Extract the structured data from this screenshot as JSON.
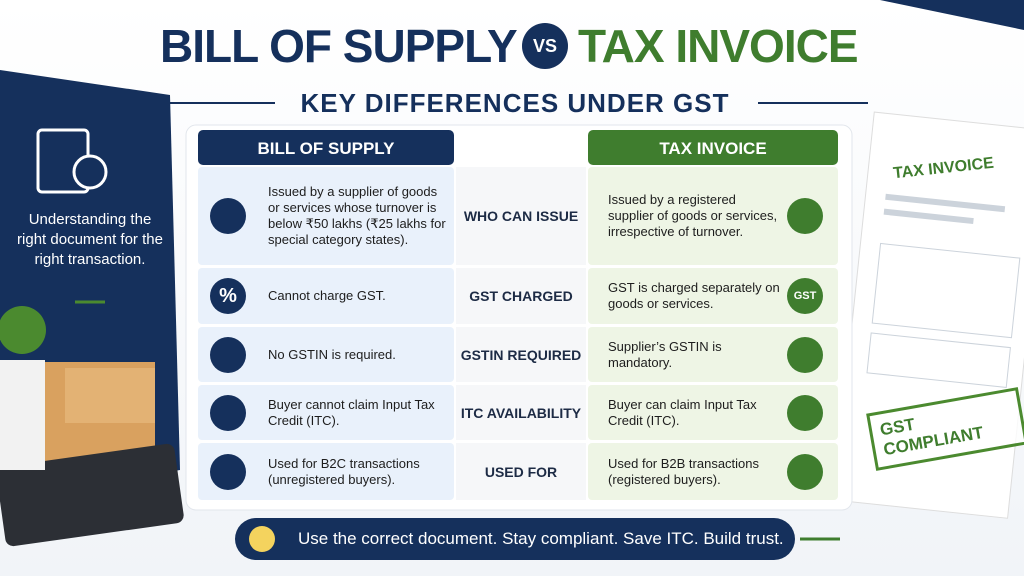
{
  "title": {
    "left": "BILL OF SUPPLY",
    "vs": "VS",
    "right": "TAX INVOICE"
  },
  "subtitle": "KEY DIFFERENCES UNDER GST",
  "sidebar": "Understanding the right document for the right transaction.",
  "table": {
    "headers": {
      "bill": "BILL OF SUPPLY",
      "tax": "TAX INVOICE"
    },
    "rows": [
      {
        "bill": "Issued by a supplier of goods or services whose turnover is below ₹50 lakhs (₹25 lakhs for special category states).",
        "criterion": "WHO CAN ISSUE",
        "tax": "Issued by a registered supplier of goods or services, irrespective of turnover."
      },
      {
        "bill": "Cannot charge GST.",
        "bill_icon": "%",
        "criterion": "GST CHARGED",
        "tax": "GST is charged separately on goods or services.",
        "tax_icon": "GST"
      },
      {
        "bill": "No GSTIN is required.",
        "criterion": "GSTIN REQUIRED",
        "tax": "Supplier’s GSTIN is mandatory."
      },
      {
        "bill": "Buyer cannot claim Input Tax Credit (ITC).",
        "criterion": "ITC AVAILABILITY",
        "tax": "Buyer can claim Input Tax Credit (ITC)."
      },
      {
        "bill": "Used for B2C transactions (unregistered buyers).",
        "criterion": "USED FOR",
        "tax": "Used for B2B transactions (registered buyers)."
      }
    ]
  },
  "document": {
    "title": "TAX INVOICE",
    "stamp": "GST COMPLIANT"
  },
  "footer": "Use the correct document. Stay compliant. Save ITC. Build trust."
}
